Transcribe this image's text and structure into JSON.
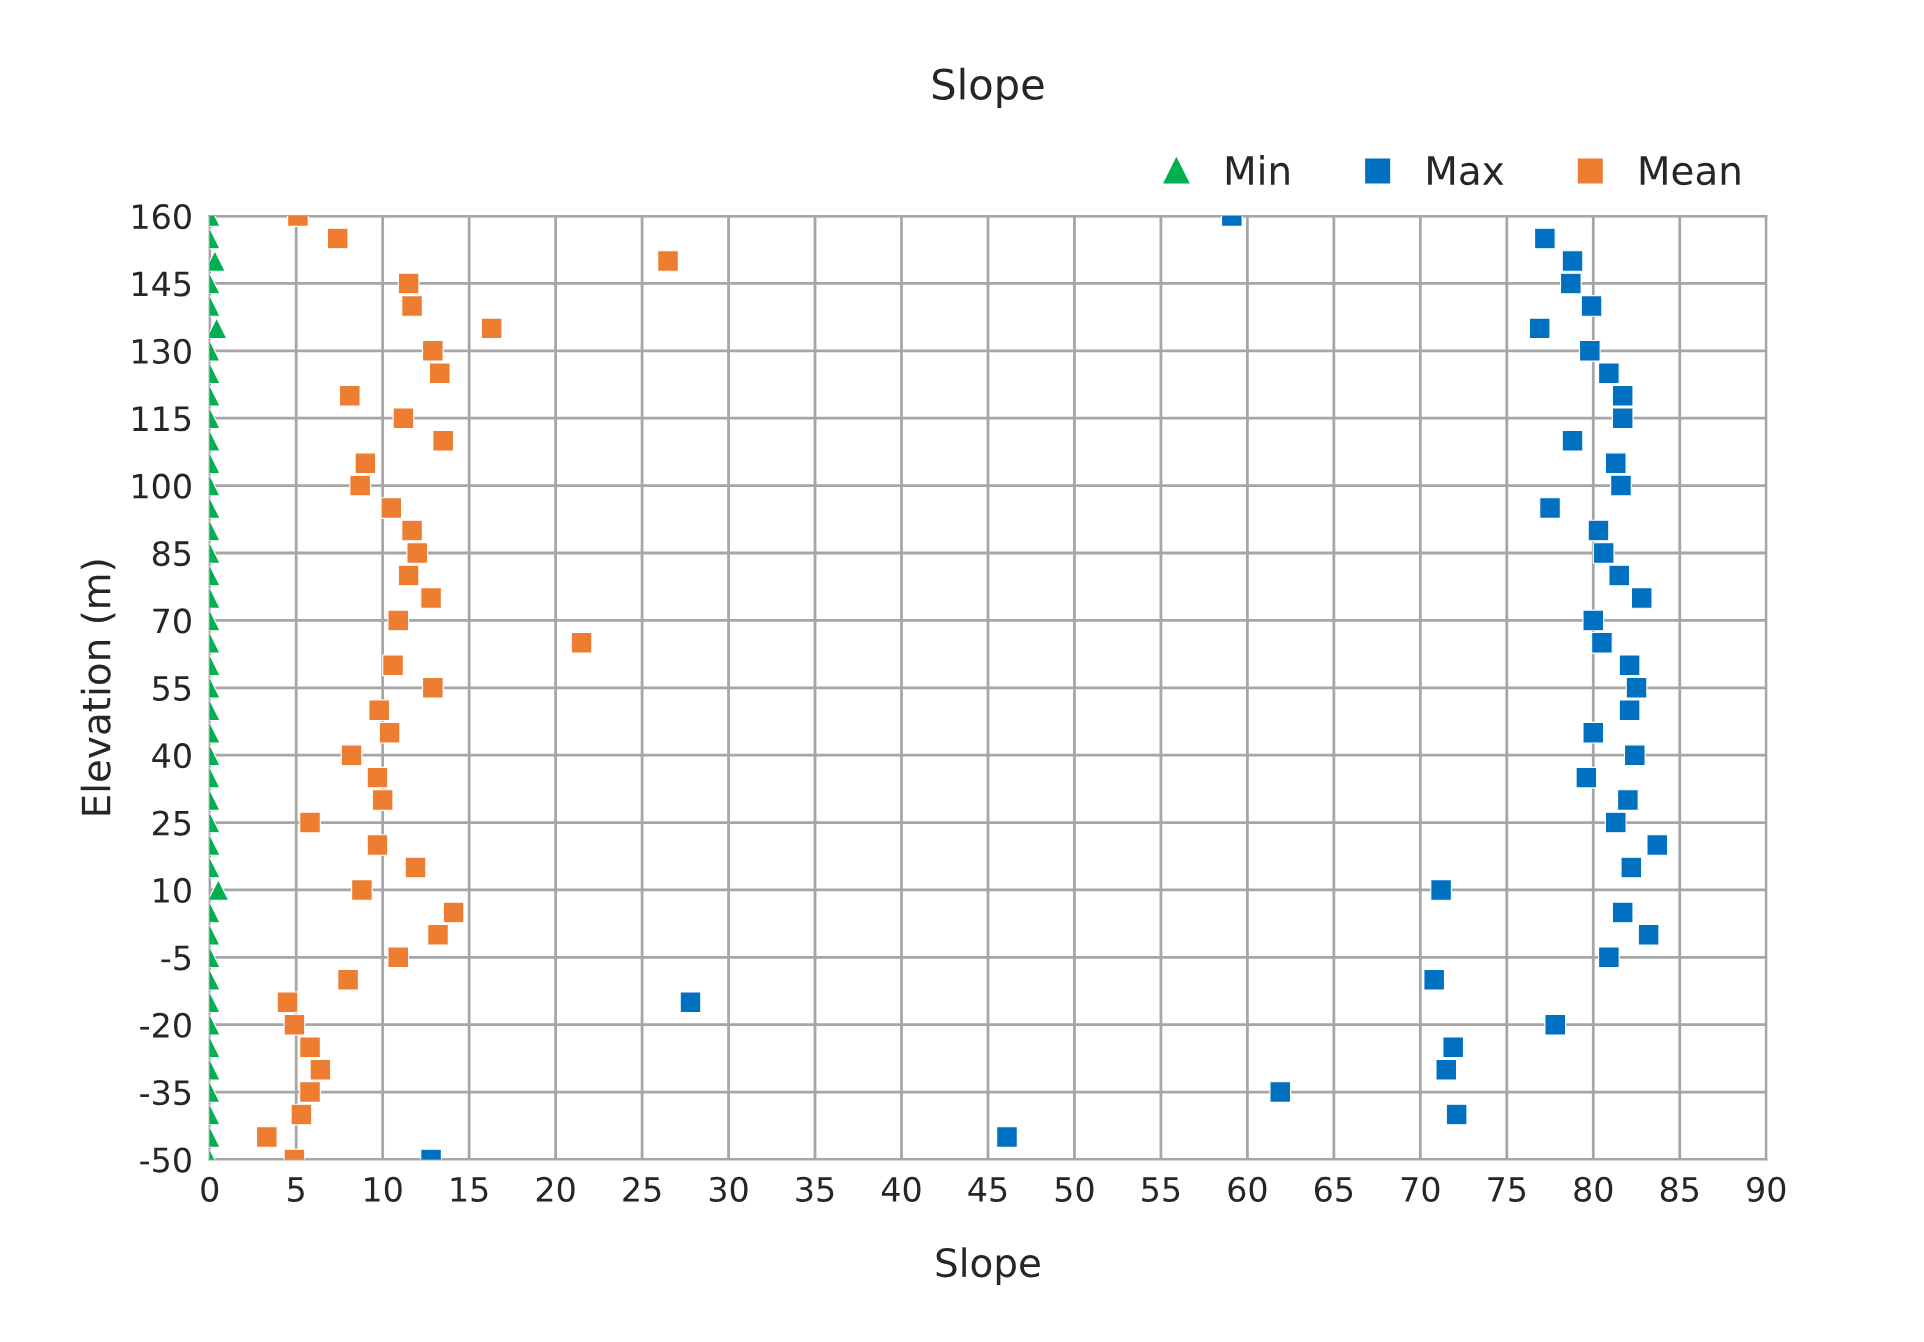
{
  "chart_data": {
    "type": "scatter",
    "title": "Slope",
    "xlabel": "Slope",
    "ylabel": "Elevation (m)",
    "x": [
      160,
      155,
      150,
      145,
      140,
      135,
      130,
      125,
      120,
      115,
      110,
      105,
      100,
      95,
      90,
      85,
      80,
      75,
      70,
      65,
      60,
      55,
      50,
      45,
      40,
      35,
      30,
      25,
      20,
      15,
      10,
      5,
      0,
      -5,
      -10,
      -15,
      -20,
      -25,
      -30,
      -35,
      -40,
      -45,
      -50
    ],
    "orientation": "horizontal",
    "series": [
      {
        "name": "Min",
        "color": "#00b050",
        "marker": "triangle",
        "values": [
          0,
          0,
          0.3,
          0,
          0,
          0.4,
          0,
          0,
          0,
          0,
          0,
          0,
          0,
          0,
          0,
          0,
          0,
          0,
          0,
          0,
          0,
          0,
          0,
          0,
          0,
          0,
          0,
          0,
          0,
          0,
          0.5,
          0,
          0,
          0,
          0,
          0,
          0,
          0,
          0,
          0,
          0,
          0,
          0
        ]
      },
      {
        "name": "Max",
        "color": "#0070c0",
        "marker": "square",
        "values": [
          59.1,
          77.2,
          78.8,
          78.7,
          79.9,
          76.9,
          79.8,
          80.9,
          81.7,
          81.7,
          78.8,
          81.3,
          81.6,
          77.5,
          80.3,
          80.6,
          81.5,
          82.8,
          80.0,
          80.5,
          82.1,
          82.5,
          82.1,
          80.0,
          82.4,
          79.6,
          82.0,
          81.3,
          83.7,
          82.2,
          71.2,
          81.7,
          83.2,
          80.9,
          70.8,
          27.8,
          77.8,
          71.9,
          71.5,
          61.9,
          72.1,
          46.1,
          12.8
        ]
      },
      {
        "name": "Mean",
        "color": "#ed7d31",
        "marker": "square",
        "values": [
          5.1,
          7.4,
          26.5,
          11.5,
          11.7,
          16.3,
          12.9,
          13.3,
          8.1,
          11.2,
          13.5,
          9.0,
          8.7,
          10.5,
          11.7,
          12.0,
          11.5,
          12.8,
          10.9,
          21.5,
          10.6,
          12.9,
          9.8,
          10.4,
          8.2,
          9.7,
          10.0,
          5.8,
          9.7,
          11.9,
          8.8,
          14.1,
          13.2,
          10.9,
          8.0,
          4.5,
          4.9,
          5.8,
          6.4,
          5.8,
          5.3,
          3.3,
          4.9
        ]
      }
    ],
    "xlim": [
      0,
      90
    ],
    "xticks": [
      0,
      5,
      10,
      15,
      20,
      25,
      30,
      35,
      40,
      45,
      50,
      55,
      60,
      65,
      70,
      75,
      80,
      85,
      90
    ],
    "ylim": [
      -50,
      160
    ],
    "yticks": [
      160,
      145,
      130,
      115,
      100,
      85,
      70,
      55,
      40,
      25,
      10,
      -5,
      -20,
      -35,
      -50
    ],
    "grid": true,
    "legend": "top right"
  }
}
